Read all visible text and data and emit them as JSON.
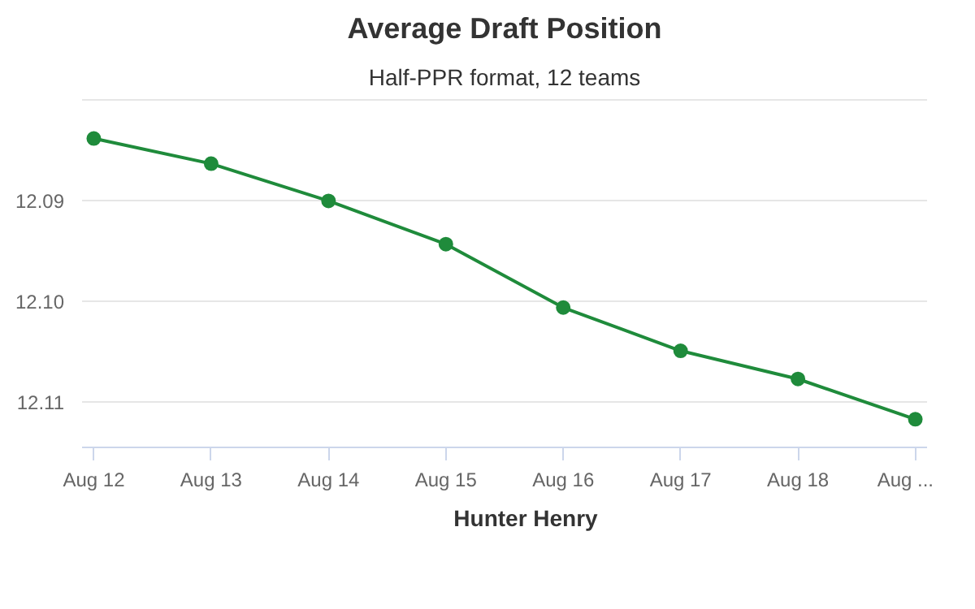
{
  "chart_data": {
    "type": "line",
    "title": "Average Draft Position",
    "subtitle": "Half-PPR format, 12 teams",
    "categories": [
      "Aug 12",
      "Aug 13",
      "Aug 14",
      "Aug 15",
      "Aug 16",
      "Aug 17",
      "Aug 18",
      "Aug ..."
    ],
    "series": [
      {
        "name": "Hunter Henry",
        "color": "#1f8b3b",
        "values": [
          12.0838,
          12.0863,
          12.09,
          12.0943,
          12.1006,
          12.1049,
          12.1077,
          12.1117
        ]
      }
    ],
    "ylim": [
      12.1145,
      12.0798
    ],
    "yticks": [
      {
        "value": 12.08,
        "label": null
      },
      12.09,
      {
        "value": 12.1,
        "label": "12.10"
      },
      12.11
    ],
    "grid": "y",
    "legend": "bottom",
    "marker": "circle",
    "line_style": "solid"
  }
}
